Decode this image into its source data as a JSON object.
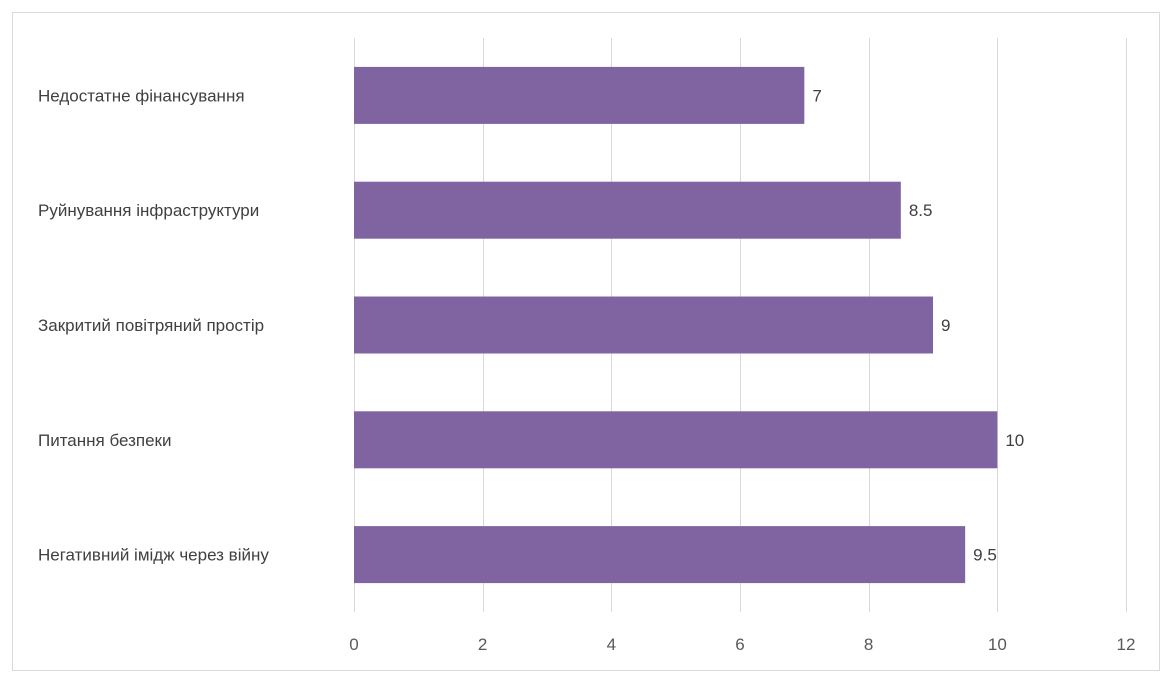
{
  "chart_data": {
    "type": "bar",
    "orientation": "horizontal",
    "categories": [
      "Недостатне фінансування",
      "Руйнування інфраструктури",
      "Закритий повітряний простір",
      "Питання безпеки",
      "Негативний імідж через війну"
    ],
    "values": [
      7,
      8.5,
      9,
      10,
      9.5
    ],
    "value_labels": [
      "7",
      "8.5",
      "9",
      "10",
      "9.5"
    ],
    "xlim": [
      0,
      12
    ],
    "xticks": [
      "0",
      "2",
      "4",
      "6",
      "8",
      "10",
      "12"
    ],
    "title": "",
    "xlabel": "",
    "ylabel": "",
    "grid": "vertical",
    "legend": "none",
    "bar_color": "#8064a2"
  }
}
